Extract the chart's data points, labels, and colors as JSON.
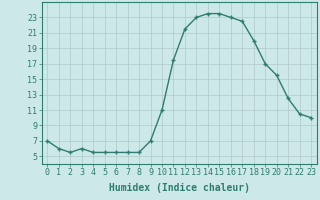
{
  "x": [
    0,
    1,
    2,
    3,
    4,
    5,
    6,
    7,
    8,
    9,
    10,
    11,
    12,
    13,
    14,
    15,
    16,
    17,
    18,
    19,
    20,
    21,
    22,
    23
  ],
  "y": [
    7,
    6,
    5.5,
    6,
    5.5,
    5.5,
    5.5,
    5.5,
    5.5,
    7,
    11,
    17.5,
    21.5,
    23,
    23.5,
    23.5,
    23,
    22.5,
    20,
    17,
    15.5,
    12.5,
    10.5,
    10
  ],
  "line_color": "#2e7d6e",
  "marker": "+",
  "markersize": 3,
  "linewidth": 1.0,
  "background_color": "#cce8e8",
  "grid_color": "#b0c8c8",
  "xlabel": "Humidex (Indice chaleur)",
  "ylabel": "",
  "xlim": [
    -0.5,
    23.5
  ],
  "ylim": [
    4,
    25
  ],
  "yticks": [
    5,
    7,
    9,
    11,
    13,
    15,
    17,
    19,
    21,
    23
  ],
  "xticks": [
    0,
    1,
    2,
    3,
    4,
    5,
    6,
    7,
    8,
    9,
    10,
    11,
    12,
    13,
    14,
    15,
    16,
    17,
    18,
    19,
    20,
    21,
    22,
    23
  ],
  "xlabel_fontsize": 7,
  "tick_fontsize": 6,
  "tick_color": "#2e7d6e",
  "axis_color": "#2e7d6e"
}
